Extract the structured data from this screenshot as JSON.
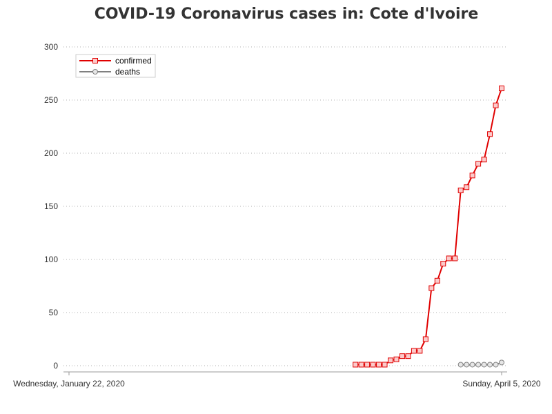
{
  "chart_data": {
    "type": "line",
    "title": "COVID-19 Coronavirus cases in: Cote d'Ivoire",
    "xlabel": "",
    "ylabel": "",
    "x_range": [
      "2020-01-22",
      "2020-04-05"
    ],
    "x_tick_labels": [
      {
        "date": "2020-01-22",
        "label": "Wednesday, January 22, 2020"
      },
      {
        "date": "2020-04-05",
        "label": "Sunday, April 5, 2020"
      }
    ],
    "ylim": [
      0,
      300
    ],
    "y_ticks": [
      0,
      50,
      100,
      150,
      200,
      250,
      300
    ],
    "grid": "horizontal dotted",
    "legend": "top-left",
    "series": [
      {
        "name": "confirmed",
        "color": "#e00000",
        "marker": "square",
        "dates": [
          "2020-03-11",
          "2020-03-12",
          "2020-03-13",
          "2020-03-14",
          "2020-03-15",
          "2020-03-16",
          "2020-03-17",
          "2020-03-18",
          "2020-03-19",
          "2020-03-20",
          "2020-03-21",
          "2020-03-22",
          "2020-03-23",
          "2020-03-24",
          "2020-03-25",
          "2020-03-26",
          "2020-03-27",
          "2020-03-28",
          "2020-03-29",
          "2020-03-30",
          "2020-03-31",
          "2020-04-01",
          "2020-04-02",
          "2020-04-03",
          "2020-04-04",
          "2020-04-05"
        ],
        "values": [
          1,
          1,
          1,
          1,
          1,
          1,
          5,
          6,
          9,
          9,
          14,
          14,
          25,
          73,
          80,
          96,
          101,
          101,
          165,
          168,
          179,
          190,
          194,
          218,
          245,
          261
        ]
      },
      {
        "name": "deaths",
        "color": "#808080",
        "marker": "circle",
        "dates": [
          "2020-03-29",
          "2020-03-30",
          "2020-03-31",
          "2020-04-01",
          "2020-04-02",
          "2020-04-03",
          "2020-04-04",
          "2020-04-05"
        ],
        "values": [
          1,
          1,
          1,
          1,
          1,
          1,
          1,
          3
        ]
      }
    ]
  }
}
